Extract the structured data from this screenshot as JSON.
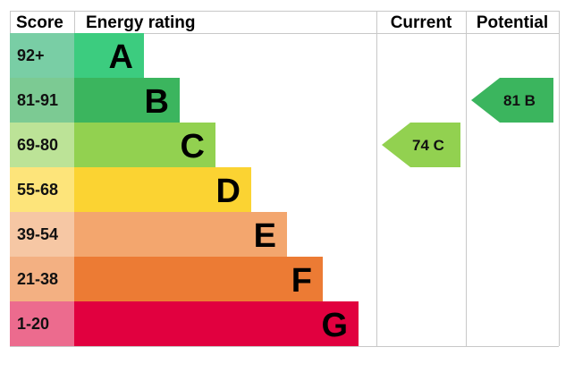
{
  "chart_data": {
    "type": "bar",
    "headers": {
      "score": "Score",
      "rating": "Energy rating",
      "current": "Current",
      "potential": "Potential"
    },
    "bands": [
      {
        "letter": "A",
        "range": "92+",
        "color": "#3ccc7f",
        "score_color": "#79cea5"
      },
      {
        "letter": "B",
        "range": "81-91",
        "color": "#3bb55e",
        "score_color": "#7cca93"
      },
      {
        "letter": "C",
        "range": "69-80",
        "color": "#92d150",
        "score_color": "#bce397"
      },
      {
        "letter": "D",
        "range": "55-68",
        "color": "#fbd332",
        "score_color": "#fde47a"
      },
      {
        "letter": "E",
        "range": "39-54",
        "color": "#f3a66e",
        "score_color": "#f6c7a4"
      },
      {
        "letter": "F",
        "range": "21-38",
        "color": "#ec7b34",
        "score_color": "#f3b082"
      },
      {
        "letter": "G",
        "range": "1-20",
        "color": "#e1003f",
        "score_color": "#ec6b8e"
      }
    ],
    "current": {
      "value": 74,
      "band": "C",
      "label": "74  C",
      "color": "#92d150"
    },
    "potential": {
      "value": 81,
      "band": "B",
      "label": "81  B",
      "color": "#3bb55e"
    }
  }
}
